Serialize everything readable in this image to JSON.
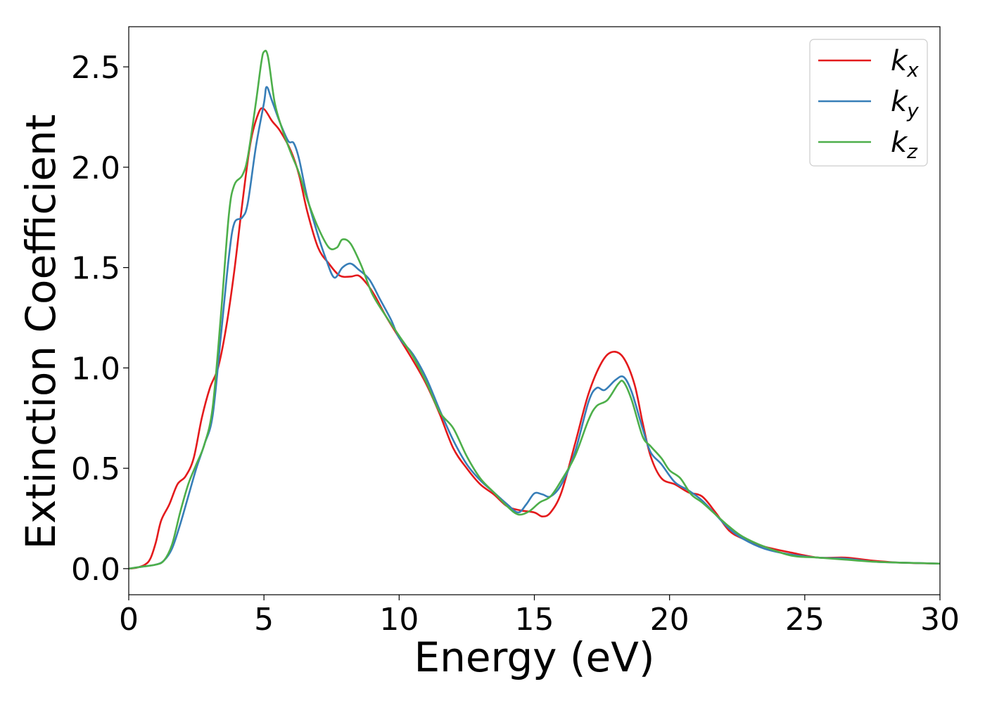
{
  "chart_data": {
    "type": "line",
    "title": "",
    "xlabel": "Energy (eV)",
    "ylabel": "Extinction Coefficient",
    "xlim": [
      0,
      30
    ],
    "ylim": [
      -0.13,
      2.7
    ],
    "xticks": [
      0,
      5,
      10,
      15,
      20,
      25,
      30
    ],
    "xtick_labels": [
      "0",
      "5",
      "10",
      "15",
      "20",
      "25",
      "30"
    ],
    "yticks": [
      0.0,
      0.5,
      1.0,
      1.5,
      2.0,
      2.5
    ],
    "ytick_labels": [
      "0.0",
      "0.5",
      "1.0",
      "1.5",
      "2.0",
      "2.5"
    ],
    "grid": false,
    "legend_position": "top-right",
    "series": [
      {
        "name": "k",
        "subscript": "x",
        "color": "#e41a1c",
        "points": [
          [
            0,
            0
          ],
          [
            0.3,
            0.005
          ],
          [
            0.6,
            0.02
          ],
          [
            0.8,
            0.05
          ],
          [
            1.0,
            0.13
          ],
          [
            1.2,
            0.24
          ],
          [
            1.5,
            0.32
          ],
          [
            1.8,
            0.42
          ],
          [
            2.1,
            0.46
          ],
          [
            2.4,
            0.55
          ],
          [
            2.7,
            0.75
          ],
          [
            3.0,
            0.9
          ],
          [
            3.3,
            1.0
          ],
          [
            3.6,
            1.2
          ],
          [
            3.9,
            1.48
          ],
          [
            4.2,
            1.82
          ],
          [
            4.5,
            2.12
          ],
          [
            4.8,
            2.27
          ],
          [
            5.0,
            2.29
          ],
          [
            5.3,
            2.23
          ],
          [
            5.6,
            2.18
          ],
          [
            6.0,
            2.08
          ],
          [
            6.3,
            1.96
          ],
          [
            6.6,
            1.78
          ],
          [
            7.0,
            1.6
          ],
          [
            7.4,
            1.52
          ],
          [
            7.8,
            1.46
          ],
          [
            8.2,
            1.455
          ],
          [
            8.5,
            1.46
          ],
          [
            8.8,
            1.42
          ],
          [
            9.1,
            1.36
          ],
          [
            9.5,
            1.26
          ],
          [
            10.0,
            1.15
          ],
          [
            10.5,
            1.04
          ],
          [
            11.0,
            0.92
          ],
          [
            11.5,
            0.77
          ],
          [
            12.0,
            0.6
          ],
          [
            12.5,
            0.5
          ],
          [
            13.0,
            0.42
          ],
          [
            13.5,
            0.37
          ],
          [
            14.0,
            0.31
          ],
          [
            14.5,
            0.29
          ],
          [
            15.0,
            0.28
          ],
          [
            15.3,
            0.26
          ],
          [
            15.6,
            0.28
          ],
          [
            16.0,
            0.38
          ],
          [
            16.5,
            0.62
          ],
          [
            17.0,
            0.87
          ],
          [
            17.5,
            1.03
          ],
          [
            17.9,
            1.08
          ],
          [
            18.3,
            1.05
          ],
          [
            18.7,
            0.92
          ],
          [
            19.0,
            0.73
          ],
          [
            19.3,
            0.56
          ],
          [
            19.7,
            0.45
          ],
          [
            20.2,
            0.42
          ],
          [
            20.7,
            0.38
          ],
          [
            21.2,
            0.36
          ],
          [
            21.7,
            0.28
          ],
          [
            22.2,
            0.19
          ],
          [
            22.7,
            0.15
          ],
          [
            23.5,
            0.11
          ],
          [
            24.5,
            0.08
          ],
          [
            25.5,
            0.055
          ],
          [
            26.5,
            0.055
          ],
          [
            27.5,
            0.04
          ],
          [
            28.5,
            0.03
          ],
          [
            30,
            0.025
          ]
        ]
      },
      {
        "name": "k",
        "subscript": "y",
        "color": "#377eb8",
        "points": [
          [
            0,
            0
          ],
          [
            0.5,
            0.01
          ],
          [
            1.0,
            0.02
          ],
          [
            1.3,
            0.04
          ],
          [
            1.6,
            0.1
          ],
          [
            1.9,
            0.22
          ],
          [
            2.2,
            0.36
          ],
          [
            2.5,
            0.5
          ],
          [
            2.8,
            0.62
          ],
          [
            3.1,
            0.76
          ],
          [
            3.4,
            1.15
          ],
          [
            3.7,
            1.55
          ],
          [
            3.9,
            1.72
          ],
          [
            4.2,
            1.75
          ],
          [
            4.4,
            1.82
          ],
          [
            4.7,
            2.1
          ],
          [
            5.0,
            2.32
          ],
          [
            5.1,
            2.4
          ],
          [
            5.3,
            2.33
          ],
          [
            5.6,
            2.22
          ],
          [
            5.9,
            2.13
          ],
          [
            6.1,
            2.12
          ],
          [
            6.3,
            2.04
          ],
          [
            6.6,
            1.85
          ],
          [
            7.0,
            1.66
          ],
          [
            7.3,
            1.54
          ],
          [
            7.6,
            1.45
          ],
          [
            7.9,
            1.5
          ],
          [
            8.2,
            1.52
          ],
          [
            8.5,
            1.49
          ],
          [
            8.9,
            1.44
          ],
          [
            9.3,
            1.34
          ],
          [
            9.7,
            1.24
          ],
          [
            10.0,
            1.15
          ],
          [
            10.5,
            1.07
          ],
          [
            11.0,
            0.95
          ],
          [
            11.5,
            0.79
          ],
          [
            12.0,
            0.64
          ],
          [
            12.5,
            0.52
          ],
          [
            13.0,
            0.44
          ],
          [
            13.5,
            0.38
          ],
          [
            14.0,
            0.32
          ],
          [
            14.4,
            0.28
          ],
          [
            14.7,
            0.32
          ],
          [
            15.0,
            0.375
          ],
          [
            15.3,
            0.37
          ],
          [
            15.6,
            0.36
          ],
          [
            16.0,
            0.42
          ],
          [
            16.5,
            0.58
          ],
          [
            17.0,
            0.83
          ],
          [
            17.3,
            0.9
          ],
          [
            17.6,
            0.89
          ],
          [
            18.0,
            0.94
          ],
          [
            18.3,
            0.955
          ],
          [
            18.6,
            0.88
          ],
          [
            19.0,
            0.7
          ],
          [
            19.3,
            0.58
          ],
          [
            19.7,
            0.52
          ],
          [
            20.2,
            0.43
          ],
          [
            20.7,
            0.39
          ],
          [
            21.2,
            0.34
          ],
          [
            21.7,
            0.27
          ],
          [
            22.2,
            0.2
          ],
          [
            22.7,
            0.15
          ],
          [
            23.5,
            0.1
          ],
          [
            24.5,
            0.07
          ],
          [
            25.5,
            0.055
          ],
          [
            26.5,
            0.05
          ],
          [
            27.5,
            0.035
          ],
          [
            28.5,
            0.03
          ],
          [
            30,
            0.025
          ]
        ]
      },
      {
        "name": "k",
        "subscript": "z",
        "color": "#4daf4a",
        "points": [
          [
            0,
            0
          ],
          [
            0.5,
            0.01
          ],
          [
            1.0,
            0.02
          ],
          [
            1.3,
            0.04
          ],
          [
            1.6,
            0.12
          ],
          [
            1.9,
            0.28
          ],
          [
            2.2,
            0.42
          ],
          [
            2.5,
            0.52
          ],
          [
            2.8,
            0.62
          ],
          [
            3.1,
            0.8
          ],
          [
            3.4,
            1.25
          ],
          [
            3.7,
            1.76
          ],
          [
            3.9,
            1.91
          ],
          [
            4.2,
            1.96
          ],
          [
            4.4,
            2.05
          ],
          [
            4.7,
            2.32
          ],
          [
            4.9,
            2.52
          ],
          [
            5.0,
            2.575
          ],
          [
            5.15,
            2.55
          ],
          [
            5.4,
            2.32
          ],
          [
            5.7,
            2.18
          ],
          [
            6.0,
            2.07
          ],
          [
            6.3,
            1.97
          ],
          [
            6.6,
            1.84
          ],
          [
            7.0,
            1.7
          ],
          [
            7.4,
            1.6
          ],
          [
            7.7,
            1.6
          ],
          [
            7.9,
            1.64
          ],
          [
            8.2,
            1.62
          ],
          [
            8.6,
            1.51
          ],
          [
            9.0,
            1.37
          ],
          [
            9.5,
            1.26
          ],
          [
            10.0,
            1.16
          ],
          [
            10.5,
            1.06
          ],
          [
            11.0,
            0.93
          ],
          [
            11.5,
            0.78
          ],
          [
            12.0,
            0.7
          ],
          [
            12.5,
            0.56
          ],
          [
            13.0,
            0.45
          ],
          [
            13.5,
            0.38
          ],
          [
            14.0,
            0.31
          ],
          [
            14.4,
            0.27
          ],
          [
            14.8,
            0.285
          ],
          [
            15.2,
            0.33
          ],
          [
            15.6,
            0.36
          ],
          [
            16.0,
            0.44
          ],
          [
            16.5,
            0.56
          ],
          [
            17.0,
            0.74
          ],
          [
            17.3,
            0.81
          ],
          [
            17.7,
            0.84
          ],
          [
            18.1,
            0.92
          ],
          [
            18.3,
            0.93
          ],
          [
            18.6,
            0.84
          ],
          [
            19.0,
            0.66
          ],
          [
            19.3,
            0.61
          ],
          [
            19.7,
            0.55
          ],
          [
            20.0,
            0.49
          ],
          [
            20.4,
            0.45
          ],
          [
            20.8,
            0.37
          ],
          [
            21.2,
            0.33
          ],
          [
            21.7,
            0.27
          ],
          [
            22.2,
            0.21
          ],
          [
            22.7,
            0.16
          ],
          [
            23.5,
            0.11
          ],
          [
            24.5,
            0.065
          ],
          [
            25.5,
            0.055
          ],
          [
            26.5,
            0.045
          ],
          [
            27.5,
            0.035
          ],
          [
            28.5,
            0.03
          ],
          [
            30,
            0.025
          ]
        ]
      }
    ]
  }
}
